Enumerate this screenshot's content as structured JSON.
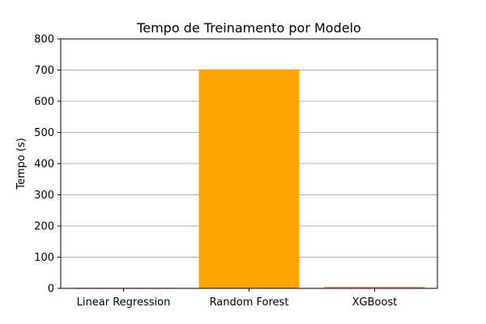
{
  "chart_data": {
    "type": "bar",
    "title": "Tempo de Treinamento por Modelo",
    "xlabel": "",
    "ylabel": "Tempo (s)",
    "categories": [
      "Linear Regression",
      "Random Forest",
      "XGBoost"
    ],
    "values": [
      2,
      702,
      5
    ],
    "ylim": [
      0,
      800
    ],
    "yticks": [
      0,
      100,
      200,
      300,
      400,
      500,
      600,
      700,
      800
    ],
    "grid": "horizontal",
    "bar_color": "#FFA500",
    "grid_color": "#b0b0b0",
    "axis_color": "#000000"
  }
}
